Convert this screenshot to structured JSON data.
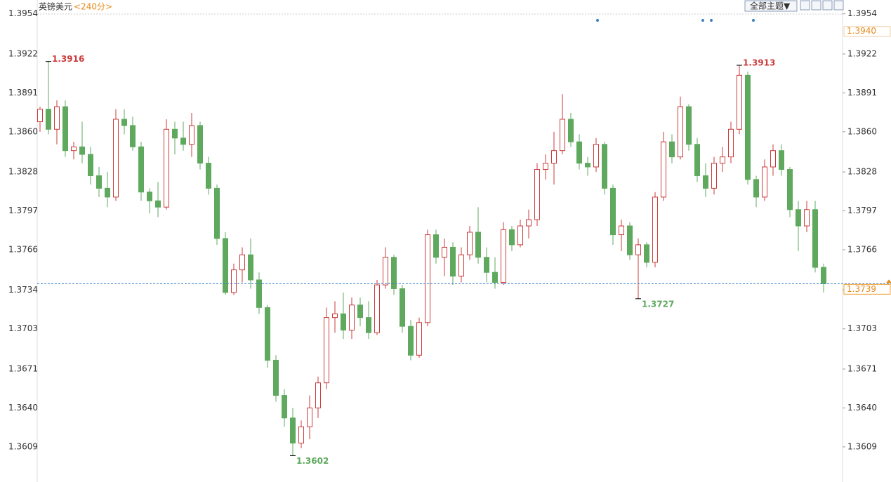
{
  "chart_data": {
    "type": "candlestick",
    "title": "英镑美元",
    "subtitle": "<240分>",
    "menu_label": "全部主题▼",
    "up_color": "#cc3b3b",
    "down_color": "#5fa95f",
    "ylim": [
      1.3581,
      1.3965
    ],
    "yticks": [
      1.3954,
      1.3922,
      1.3891,
      {
        "value": 1.386,
        "label": "1.3860"
      },
      1.3828,
      1.3797,
      1.3766,
      1.3734,
      1.3703,
      1.3671,
      {
        "value": 1.364,
        "label": "1.3640"
      },
      1.3609
    ],
    "grid": false,
    "open": [
      1.3868,
      1.3878,
      1.3862,
      1.388,
      1.3845,
      1.3848,
      1.3842,
      1.3825,
      1.3815,
      1.3808,
      1.387,
      1.3865,
      1.3848,
      1.3812,
      1.3805,
      1.38,
      1.3862,
      1.3855,
      1.385,
      1.3865,
      1.3835,
      1.3815,
      1.3775,
      1.3732,
      1.375,
      1.3762,
      1.3742,
      1.372,
      1.3678,
      1.365,
      1.3632,
      1.3612,
      1.3625,
      1.364,
      1.366,
      1.3712,
      1.3715,
      1.3702,
      1.3722,
      1.3712,
      1.37,
      1.3738,
      1.376,
      1.3735,
      1.3705,
      1.3682,
      1.3708,
      1.3778,
      1.376,
      1.3768,
      1.3745,
      1.3762,
      1.378,
      1.376,
      1.3748,
      1.374,
      1.3782,
      1.377,
      1.3785,
      1.379,
      1.383,
      1.3835,
      1.3845,
      1.387,
      1.3852,
      1.3835,
      1.3832,
      1.385,
      1.3815,
      1.3778,
      1.3785,
      1.3762,
      1.377,
      1.3756,
      1.3808,
      1.3852,
      1.384,
      1.388,
      1.385,
      1.3825,
      1.3815,
      1.3835,
      1.384,
      1.3862,
      1.3905,
      1.3822,
      1.3808,
      1.3832,
      1.3845,
      1.383,
      1.3798,
      1.3785,
      1.3798,
      1.3752
    ],
    "high": [
      1.388,
      1.3916,
      1.3885,
      1.3885,
      1.3852,
      1.3868,
      1.3848,
      1.3832,
      1.3828,
      1.3878,
      1.3878,
      1.3872,
      1.3852,
      1.3815,
      1.382,
      1.387,
      1.3868,
      1.3868,
      1.3875,
      1.3868,
      1.384,
      1.3818,
      1.378,
      1.3755,
      1.3768,
      1.3775,
      1.3748,
      1.3722,
      1.3682,
      1.3655,
      1.364,
      1.363,
      1.365,
      1.3665,
      1.372,
      1.3725,
      1.3732,
      1.3728,
      1.3728,
      1.3725,
      1.3742,
      1.3768,
      1.3762,
      1.3738,
      1.371,
      1.3712,
      1.3782,
      1.3782,
      1.3775,
      1.3772,
      1.3768,
      1.3785,
      1.38,
      1.3768,
      1.376,
      1.3788,
      1.3785,
      1.379,
      1.3798,
      1.3835,
      1.3842,
      1.386,
      1.389,
      1.3875,
      1.3858,
      1.384,
      1.3855,
      1.3852,
      1.3818,
      1.379,
      1.3788,
      1.3775,
      1.3772,
      1.3812,
      1.386,
      1.3858,
      1.3888,
      1.3882,
      1.3855,
      1.3835,
      1.384,
      1.3848,
      1.3868,
      1.3913,
      1.3908,
      1.3825,
      1.3838,
      1.385,
      1.385,
      1.3832,
      1.3805,
      1.3805,
      1.3805,
      1.3755
    ],
    "low": [
      1.386,
      1.3858,
      1.385,
      1.384,
      1.3838,
      1.3835,
      1.3818,
      1.3808,
      1.38,
      1.3805,
      1.3858,
      1.3845,
      1.3805,
      1.3795,
      1.3792,
      1.3798,
      1.3842,
      1.3845,
      1.384,
      1.383,
      1.381,
      1.377,
      1.373,
      1.373,
      1.374,
      1.3735,
      1.3715,
      1.3672,
      1.3645,
      1.3625,
      1.3602,
      1.3608,
      1.3615,
      1.3632,
      1.3655,
      1.37,
      1.3695,
      1.3695,
      1.3705,
      1.3695,
      1.3698,
      1.3735,
      1.373,
      1.37,
      1.3678,
      1.368,
      1.3705,
      1.3755,
      1.3745,
      1.3738,
      1.374,
      1.3758,
      1.3755,
      1.374,
      1.3735,
      1.3738,
      1.3765,
      1.3768,
      1.3775,
      1.3785,
      1.3822,
      1.3818,
      1.3842,
      1.3848,
      1.383,
      1.3825,
      1.3828,
      1.381,
      1.377,
      1.3765,
      1.3758,
      1.3727,
      1.3752,
      1.3752,
      1.3805,
      1.3835,
      1.3838,
      1.3845,
      1.382,
      1.3808,
      1.381,
      1.3828,
      1.3835,
      1.3858,
      1.3818,
      1.38,
      1.3805,
      1.3825,
      1.3825,
      1.3792,
      1.3765,
      1.378,
      1.3748,
      1.3732
    ],
    "close": [
      1.3878,
      1.3862,
      1.388,
      1.3845,
      1.3848,
      1.3842,
      1.3825,
      1.3815,
      1.3808,
      1.387,
      1.3865,
      1.3848,
      1.3812,
      1.3805,
      1.38,
      1.3862,
      1.3855,
      1.385,
      1.3865,
      1.3835,
      1.3815,
      1.3775,
      1.3732,
      1.375,
      1.3762,
      1.3742,
      1.372,
      1.3678,
      1.365,
      1.3632,
      1.3612,
      1.3625,
      1.364,
      1.366,
      1.3712,
      1.3715,
      1.3702,
      1.3722,
      1.3712,
      1.37,
      1.3738,
      1.376,
      1.3735,
      1.3705,
      1.3682,
      1.3708,
      1.3778,
      1.376,
      1.3768,
      1.3745,
      1.3762,
      1.378,
      1.376,
      1.3748,
      1.374,
      1.3782,
      1.377,
      1.3785,
      1.379,
      1.383,
      1.3835,
      1.3845,
      1.387,
      1.3852,
      1.3835,
      1.3832,
      1.385,
      1.3815,
      1.3778,
      1.3785,
      1.3762,
      1.377,
      1.3756,
      1.3808,
      1.3852,
      1.384,
      1.388,
      1.385,
      1.3825,
      1.3815,
      1.3835,
      1.384,
      1.3862,
      1.3905,
      1.3822,
      1.3808,
      1.3832,
      1.3845,
      1.383,
      1.3798,
      1.3785,
      1.3798,
      1.3752,
      1.3739
    ],
    "annotations": [
      "1.3916",
      "1.3913",
      "1.3602",
      "1.3727"
    ],
    "last_price_label": "1.3739",
    "marker_label": "1.3940"
  }
}
